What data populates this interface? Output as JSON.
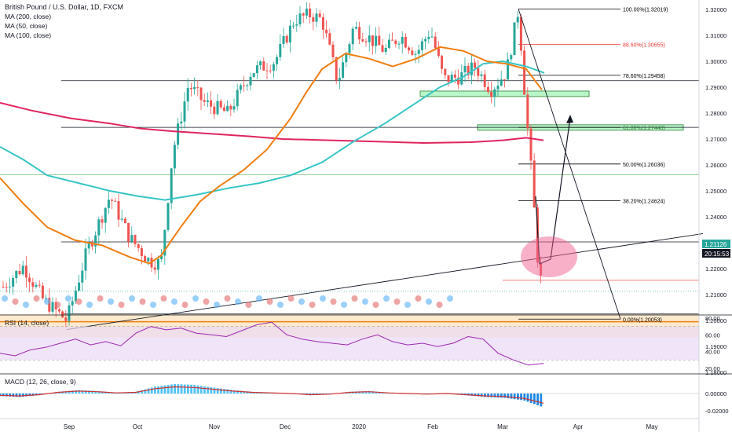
{
  "legend": {
    "title": "British Pound / U.S. Dollar, 1D, FXCM",
    "ma200": "MA (200, close)",
    "ma50": "MA (50, close)",
    "ma100": "MA (100, close)"
  },
  "rsi_label": "RSI (14, close)",
  "macd_label": "MACD (12, 26, close, 9)",
  "price_tag": "1.21126",
  "countdown_tag": "20:15:53",
  "colors": {
    "up": "#26a69a",
    "down": "#ef5350",
    "ma200": "#e0245e",
    "ma50": "#ef7d10",
    "ma100": "#37c5c5",
    "fib": "#000000",
    "fib_red": "#e53935",
    "zone_orange": "#fbd9a6",
    "zone_green": "#b9f6ca",
    "rsi_band": "#e9d8f5",
    "rsi_line": "#9c27b0",
    "macd_line": "#2962ff",
    "signal_line": "#d32f2f",
    "circle": "#f06292"
  },
  "chart_data": [
    {
      "type": "candlestick",
      "title": "British Pound / U.S. Dollar, 1D, FXCM",
      "ylim": [
        1.175,
        1.325
      ],
      "y_ticks": [
        "1.32000",
        "1.31000",
        "1.30000",
        "1.29000",
        "1.28000",
        "1.27000",
        "1.26000",
        "1.25000",
        "1.24000",
        "1.23000",
        "1.22000",
        "1.21000",
        "1.20000",
        "1.19000",
        "1.18000"
      ],
      "x_ticks": [
        "Sep",
        "Oct",
        "Nov",
        "Dec",
        "2020",
        "Feb",
        "Mar",
        "Apr",
        "May"
      ],
      "fib_levels": [
        {
          "label": "100.00%(1.32019)",
          "value": 1.32019
        },
        {
          "label": "88.60%(1.30655)",
          "value": 1.30655
        },
        {
          "label": "78.60%(1.29458)",
          "value": 1.29458
        },
        {
          "label": "61.80%(1.27448)",
          "value": 1.27448
        },
        {
          "label": "50.00%(1.26036)",
          "value": 1.26036
        },
        {
          "label": "38.20%(1.24624)",
          "value": 1.24624
        },
        {
          "label": "0.00%(1.20053)",
          "value": 1.20053
        }
      ],
      "horizontal_lines": [
        1.2925,
        1.2745,
        1.2303,
        1.2025
      ],
      "series_ma": [
        {
          "name": "MA (200, close)",
          "values": [
            1.284,
            1.278,
            1.273,
            1.27,
            1.269,
            1.268,
            1.268,
            1.269,
            1.27,
            1.271,
            1.271,
            1.271,
            1.27
          ]
        },
        {
          "name": "MA (50, close)",
          "values": [
            1.255,
            1.23,
            1.224,
            1.256,
            1.292,
            1.302,
            1.297,
            1.289
          ]
        },
        {
          "name": "MA (100, close)",
          "values": [
            1.267,
            1.253,
            1.248,
            1.256,
            1.271,
            1.289,
            1.296
          ]
        }
      ],
      "last_price": 1.21126
    },
    {
      "type": "line",
      "title": "RSI (14, close)",
      "y_ticks": [
        "80.00",
        "60.00",
        "40.00",
        "20.00"
      ],
      "ylim": [
        20,
        80
      ],
      "values": [
        38,
        35,
        42,
        45,
        50,
        55,
        48,
        52,
        47,
        62,
        70,
        66,
        68,
        62,
        60,
        58,
        65,
        72,
        75,
        60,
        55,
        52,
        50,
        48,
        55,
        60,
        52,
        48,
        50,
        46,
        50,
        58,
        55,
        38,
        30,
        24,
        26
      ]
    },
    {
      "type": "bar",
      "title": "MACD (12, 26, close, 9)",
      "y_ticks": [
        "0.00000",
        "-0.02000"
      ],
      "values": [
        -0.003,
        -0.004,
        -0.002,
        0.002,
        0.004,
        0.003,
        0.001,
        0.002,
        0.008,
        0.011,
        0.01,
        0.007,
        0.004,
        0.002,
        0.001,
        0.0,
        -0.002,
        -0.001,
        0.002,
        0.003,
        0.001,
        0.0,
        -0.001,
        0.0,
        -0.002,
        -0.004,
        -0.005,
        -0.008,
        -0.016
      ]
    }
  ]
}
